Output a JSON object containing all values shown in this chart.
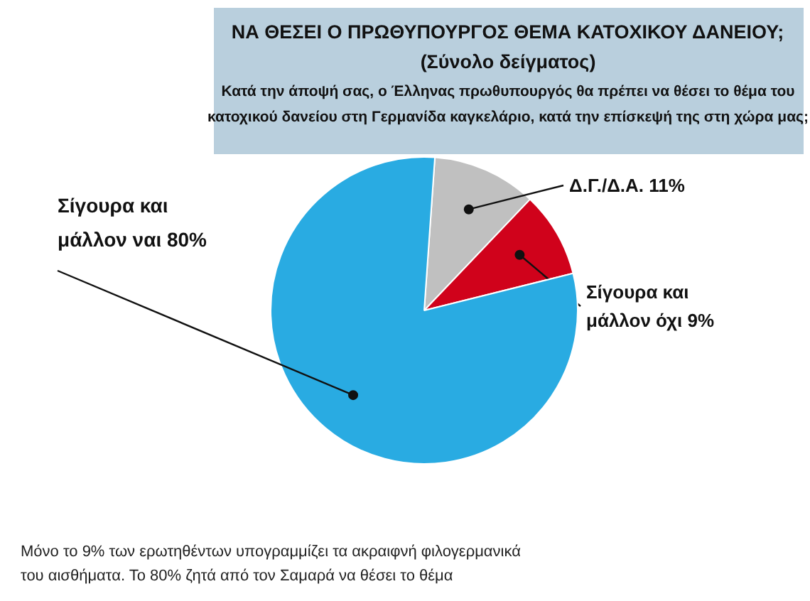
{
  "chart_data": {
    "type": "pie",
    "title": "ΝΑ ΘΕΣΕΙ Ο ΠΡΩΘΥΠΟΥΡΓΟΣ ΘΕΜΑ ΚΑΤΟΧΙΚΟΥ ΔΑΝΕΙΟΥ;",
    "subtitle": "(Σύνολο δείγματος)",
    "annotations": [
      "Κατά την άποψή σας, ο Έλληνας πρωθυπουργός θα πρέπει να θέσει το θέμα του κατοχικού δανείου στη Γερμανίδα καγκελάριο, κατά την επίσκεψή της στη χώρα μας;",
      "Μόνο το 9% των ερωτηθέντων υπογραμμίζει τα ακραιφνή φιλογερμανικά του αισθήματα. Το 80% ζητά από τον Σαμαρά να θέσει το θέμα"
    ],
    "categories": [
      "Δ.Γ./Δ.Α.",
      "Σίγουρα και μάλλον όχι",
      "Σίγουρα και μάλλον ναι"
    ],
    "values": [
      11,
      9,
      80
    ],
    "value_labels": [
      "11%",
      "9%",
      "80%"
    ],
    "colors": [
      "#c0c0c0",
      "#d0021b",
      "#29abe2"
    ]
  }
}
